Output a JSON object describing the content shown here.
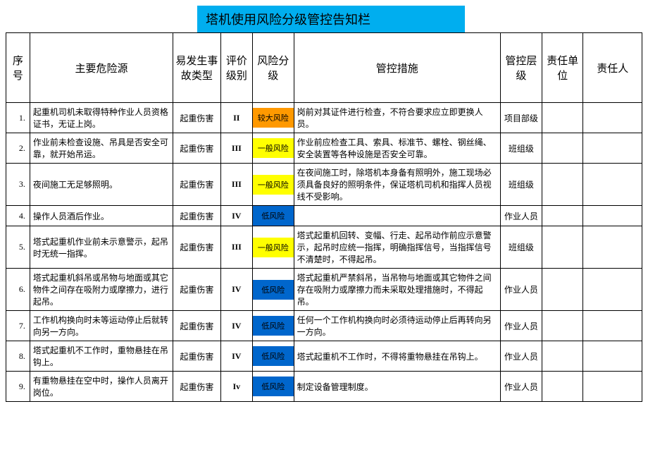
{
  "title": "塔机使用风险分级管控告知栏",
  "colors": {
    "title_bg": "#00aeef",
    "risk_high_bg": "#ff9900",
    "risk_med_bg": "#ffff00",
    "risk_low_bg": "#0066cc"
  },
  "headers": {
    "seq": "序号",
    "hazard": "主要危险源",
    "type": "易发生事故类型",
    "grade": "评价级别",
    "risk": "风险分级",
    "measure": "管控措施",
    "level": "管控层级",
    "unit": "责任单位",
    "resp": "责任人"
  },
  "rows": [
    {
      "seq": "1.",
      "hazard": "起重机司机未取得特种作业人员资格证书，无证上岗。",
      "type": "起重伤害",
      "grade": "II",
      "risk": "较大风险",
      "risk_class": "risk-high",
      "measure": "岗前对其证件进行检查，不符合要求应立即更换人员。",
      "level": "项目部级",
      "unit": "",
      "resp": ""
    },
    {
      "seq": "2.",
      "hazard": "作业前未检查设施、吊具是否安全可靠，就开始吊运。",
      "type": "起重伤害",
      "grade": "III",
      "risk": "一般风险",
      "risk_class": "risk-med",
      "measure": "作业前应检查工具、索具、标准节、螺栓、钢丝绳、安全装置等各种设施是否安全可靠。",
      "level": "班组级",
      "unit": "",
      "resp": ""
    },
    {
      "seq": "3.",
      "hazard": "夜间施工无足够照明。",
      "type": "起重伤害",
      "grade": "III",
      "risk": "一般风险",
      "risk_class": "risk-med",
      "measure": "在夜间施工时，除塔机本身备有照明外，施工现场必须具备良好的照明条件，保证塔机司机和指挥人员视线不受影响。",
      "level": "班组级",
      "unit": "",
      "resp": ""
    },
    {
      "seq": "4.",
      "hazard": "操作人员酒后作业。",
      "type": "起重伤害",
      "grade": "IV",
      "risk": "低风险",
      "risk_class": "risk-low",
      "measure": "",
      "level": "作业人员",
      "unit": "",
      "resp": ""
    },
    {
      "seq": "5.",
      "hazard": "塔式起重机作业前未示意警示，起吊时无统一指挥。",
      "type": "起重伤害",
      "grade": "III",
      "risk": "一般风险",
      "risk_class": "risk-med",
      "measure": "塔式起重机回转、变幅、行走、起吊动作前应示意警示，起吊时应统一指挥，明确指挥信号，当指挥信号不清楚时，不得起吊。",
      "level": "班组级",
      "unit": "",
      "resp": ""
    },
    {
      "seq": "6.",
      "hazard": "塔式起重机斜吊或吊物与地面或其它物件之间存在吸附力或摩擦力，进行起吊。",
      "type": "起重伤害",
      "grade": "IV",
      "risk": "低风险",
      "risk_class": "risk-low",
      "measure": "塔式起重机严禁斜吊，当吊物与地面或其它物件之间存在吸附力或摩擦力而未采取处理措施时，不得起吊。",
      "level": "作业人员",
      "unit": "",
      "resp": ""
    },
    {
      "seq": "7.",
      "hazard": "工作机构换向时未等运动停止后就转向另一方向。",
      "type": "起重伤害",
      "grade": "IV",
      "risk": "低风险",
      "risk_class": "risk-low",
      "measure": "任何一个工作机构换向时必须待运动停止后再转向另一方向。",
      "level": "作业人员",
      "unit": "",
      "resp": ""
    },
    {
      "seq": "8.",
      "hazard": "塔式起重机不工作时，重物悬挂在吊钩上。",
      "type": "起重伤害",
      "grade": "IV",
      "risk": "低风险",
      "risk_class": "risk-low",
      "measure": "塔式起重机不工作时，不得将重物悬挂在吊钩上。",
      "level": "作业人员",
      "unit": "",
      "resp": ""
    },
    {
      "seq": "9.",
      "hazard": "有重物悬挂在空中时，操作人员离开岗位。",
      "type": "起重伤害",
      "grade": "Iv",
      "risk": "低风险",
      "risk_class": "risk-low",
      "measure": "制定设备管理制度。",
      "level": "作业人员",
      "unit": "",
      "resp": ""
    }
  ]
}
